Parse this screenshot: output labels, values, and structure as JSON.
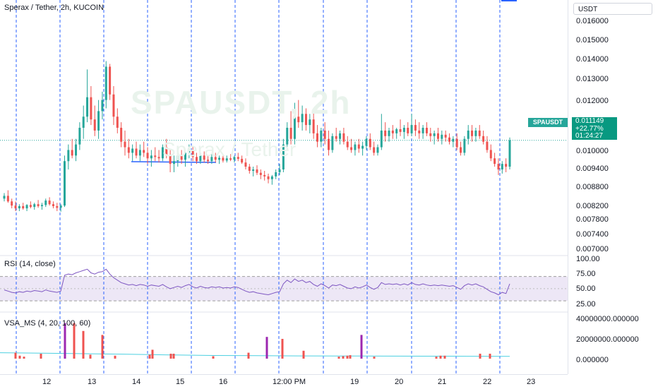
{
  "legend": {
    "symbol_title": "Sperax / Tether, 2h, KUCOIN",
    "rsi_title": "RSI (14, close)",
    "vsa_title": "VSA_MS (4, 20, 100, 60)"
  },
  "watermark": {
    "line1": "SPAUSDT, 2h",
    "line2": "Sperax / Tether"
  },
  "price_axis": {
    "currency": "USDT",
    "ticks": [
      "0.016000",
      "0.015000",
      "0.014000",
      "0.013000",
      "0.012000",
      "0.010000",
      "0.009400",
      "0.008800",
      "0.008200",
      "0.007800",
      "0.007400",
      "0.007000"
    ]
  },
  "rsi_axis": {
    "ticks": [
      "100.00",
      "75.00",
      "50.00",
      "25.00"
    ]
  },
  "volume_axis": {
    "ticks": [
      "40000000.000000",
      "20000000.000000",
      "0.000000"
    ]
  },
  "last_price": {
    "symbol": "SPAUSDT",
    "value": "0.011149",
    "change": "+22.77%",
    "countdown": "01:24:27"
  },
  "time_axis": {
    "labels": [
      "12",
      "13",
      "14",
      "15",
      "16",
      "12:00 PM",
      "19",
      "20",
      "21",
      "22",
      "23"
    ]
  },
  "colors": {
    "up": "#26a69a",
    "down": "#ef5350",
    "divider": "#2962ff",
    "rsi_line": "#7e57c2",
    "rsi_band": "#ede7f6",
    "vol_ma": "#4dd0e1",
    "vsa_climax": "#9c27b0"
  },
  "chart_data": {
    "type": "candlestick",
    "price_range": [
      0.007,
      0.0162
    ],
    "candles": [
      [
        0.00905,
        0.00925,
        0.00895,
        0.00915
      ],
      [
        0.00915,
        0.00935,
        0.0089,
        0.00895
      ],
      [
        0.00895,
        0.00905,
        0.0087,
        0.0088
      ],
      [
        0.0088,
        0.00895,
        0.0086,
        0.0087
      ],
      [
        0.0087,
        0.00885,
        0.0086,
        0.00878
      ],
      [
        0.00878,
        0.0089,
        0.00865,
        0.0087
      ],
      [
        0.0087,
        0.00885,
        0.0086,
        0.00882
      ],
      [
        0.00882,
        0.00895,
        0.0087,
        0.00875
      ],
      [
        0.00875,
        0.0089,
        0.00865,
        0.00885
      ],
      [
        0.00885,
        0.009,
        0.00872,
        0.00878
      ],
      [
        0.00878,
        0.0089,
        0.00865,
        0.00882
      ],
      [
        0.00882,
        0.00905,
        0.00875,
        0.00898
      ],
      [
        0.00898,
        0.0091,
        0.0088,
        0.00885
      ],
      [
        0.00885,
        0.00895,
        0.0087,
        0.00878
      ],
      [
        0.00878,
        0.0089,
        0.0086,
        0.00872
      ],
      [
        0.00872,
        0.00885,
        0.00858,
        0.0088
      ],
      [
        0.0088,
        0.0106,
        0.00875,
        0.0104
      ],
      [
        0.0104,
        0.011,
        0.0101,
        0.0108
      ],
      [
        0.0108,
        0.0112,
        0.0105,
        0.0106
      ],
      [
        0.0106,
        0.0112,
        0.0104,
        0.011
      ],
      [
        0.011,
        0.0118,
        0.0108,
        0.0116
      ],
      [
        0.0116,
        0.0124,
        0.0112,
        0.012
      ],
      [
        0.012,
        0.0137,
        0.0118,
        0.0127
      ],
      [
        0.0127,
        0.0131,
        0.0117,
        0.0119
      ],
      [
        0.0119,
        0.0124,
        0.0113,
        0.0115
      ],
      [
        0.0115,
        0.0126,
        0.0112,
        0.0122
      ],
      [
        0.0122,
        0.0129,
        0.0119,
        0.0126
      ],
      [
        0.0126,
        0.014,
        0.0123,
        0.0138
      ],
      [
        0.0138,
        0.0139,
        0.0126,
        0.0128
      ],
      [
        0.0128,
        0.0131,
        0.0117,
        0.012
      ],
      [
        0.012,
        0.0123,
        0.0114,
        0.0116
      ],
      [
        0.0116,
        0.0118,
        0.0109,
        0.0111
      ],
      [
        0.0111,
        0.0115,
        0.0106,
        0.0109
      ],
      [
        0.0109,
        0.0112,
        0.0105,
        0.0107
      ],
      [
        0.0107,
        0.011,
        0.0104,
        0.01085
      ],
      [
        0.01085,
        0.0111,
        0.0105,
        0.0106
      ],
      [
        0.0106,
        0.011,
        0.0104,
        0.0108
      ],
      [
        0.0108,
        0.0111,
        0.01055,
        0.0107
      ],
      [
        0.0107,
        0.0109,
        0.0103,
        0.0105
      ],
      [
        0.0105,
        0.0108,
        0.0102,
        0.0106
      ],
      [
        0.0106,
        0.0109,
        0.0104,
        0.01055
      ],
      [
        0.01055,
        0.0108,
        0.01035,
        0.0105
      ],
      [
        0.0105,
        0.011,
        0.0104,
        0.0109
      ],
      [
        0.0109,
        0.0112,
        0.0105,
        0.0106
      ],
      [
        0.0106,
        0.0108,
        0.01,
        0.0103
      ],
      [
        0.0103,
        0.0106,
        0.01,
        0.0104
      ],
      [
        0.0104,
        0.0107,
        0.0102,
        0.0106
      ],
      [
        0.0106,
        0.0108,
        0.0103,
        0.01045
      ],
      [
        0.01045,
        0.0108,
        0.0102,
        0.0107
      ],
      [
        0.0107,
        0.011,
        0.0105,
        0.0108
      ],
      [
        0.0108,
        0.01095,
        0.0104,
        0.01055
      ],
      [
        0.01055,
        0.0107,
        0.0103,
        0.0104
      ],
      [
        0.0104,
        0.0107,
        0.0103,
        0.0106
      ],
      [
        0.0106,
        0.01075,
        0.01035,
        0.01045
      ],
      [
        0.01045,
        0.0106,
        0.0103,
        0.0104
      ],
      [
        0.0104,
        0.01065,
        0.0103,
        0.01055
      ],
      [
        0.01055,
        0.0107,
        0.01035,
        0.01045
      ],
      [
        0.01045,
        0.0106,
        0.0103,
        0.01052
      ],
      [
        0.01052,
        0.01065,
        0.01035,
        0.01042
      ],
      [
        0.01042,
        0.0106,
        0.01035,
        0.0105
      ],
      [
        0.0105,
        0.01065,
        0.0104,
        0.01045
      ],
      [
        0.01045,
        0.0106,
        0.01035,
        0.01055
      ],
      [
        0.01055,
        0.0107,
        0.0104,
        0.01048
      ],
      [
        0.01048,
        0.0106,
        0.0103,
        0.01035
      ],
      [
        0.01035,
        0.0105,
        0.0101,
        0.0102
      ],
      [
        0.0102,
        0.0103,
        0.00995,
        0.01005
      ],
      [
        0.01005,
        0.0102,
        0.00985,
        0.0101
      ],
      [
        0.0101,
        0.01025,
        0.0099,
        0.00998
      ],
      [
        0.00998,
        0.0101,
        0.00975,
        0.0099
      ],
      [
        0.0099,
        0.01005,
        0.0097,
        0.00985
      ],
      [
        0.00985,
        0.00995,
        0.0096,
        0.00975
      ],
      [
        0.00975,
        0.0099,
        0.00955,
        0.00985
      ],
      [
        0.00985,
        0.0101,
        0.00975,
        0.01
      ],
      [
        0.01,
        0.0103,
        0.0099,
        0.0101
      ],
      [
        0.0101,
        0.0112,
        0.01,
        0.011
      ],
      [
        0.011,
        0.0118,
        0.0108,
        0.0116
      ],
      [
        0.0116,
        0.0122,
        0.011,
        0.0112
      ],
      [
        0.0112,
        0.0125,
        0.011,
        0.012
      ],
      [
        0.012,
        0.0126,
        0.0116,
        0.0118
      ],
      [
        0.0118,
        0.0124,
        0.0115,
        0.0121
      ],
      [
        0.0121,
        0.0123,
        0.0115,
        0.0117
      ],
      [
        0.0117,
        0.0121,
        0.0114,
        0.0119
      ],
      [
        0.0119,
        0.0122,
        0.0112,
        0.0114
      ],
      [
        0.0114,
        0.0117,
        0.0109,
        0.0111
      ],
      [
        0.0111,
        0.0116,
        0.0109,
        0.0115
      ],
      [
        0.0115,
        0.0118,
        0.011,
        0.0112
      ],
      [
        0.0112,
        0.0115,
        0.0106,
        0.0108
      ],
      [
        0.0108,
        0.0114,
        0.0107,
        0.0113
      ],
      [
        0.0113,
        0.0116,
        0.0111,
        0.0112
      ],
      [
        0.0112,
        0.0115,
        0.011,
        0.0114
      ],
      [
        0.0114,
        0.0116,
        0.011,
        0.0111
      ],
      [
        0.0111,
        0.0113,
        0.0108,
        0.0109
      ],
      [
        0.0109,
        0.0112,
        0.0107,
        0.0108
      ],
      [
        0.0108,
        0.0111,
        0.0106,
        0.011
      ],
      [
        0.011,
        0.0112,
        0.0107,
        0.01085
      ],
      [
        0.01085,
        0.0111,
        0.0106,
        0.01095
      ],
      [
        0.01095,
        0.0113,
        0.0108,
        0.0112
      ],
      [
        0.0112,
        0.0114,
        0.0108,
        0.0109
      ],
      [
        0.0109,
        0.0111,
        0.0106,
        0.0107
      ],
      [
        0.0107,
        0.011,
        0.0106,
        0.0109
      ],
      [
        0.0109,
        0.0121,
        0.0108,
        0.0115
      ],
      [
        0.0115,
        0.0118,
        0.0111,
        0.0113
      ],
      [
        0.0113,
        0.0116,
        0.0111,
        0.0115
      ],
      [
        0.0115,
        0.0117,
        0.0112,
        0.0114
      ],
      [
        0.0114,
        0.0116,
        0.0112,
        0.01155
      ],
      [
        0.01155,
        0.0119,
        0.0113,
        0.01145
      ],
      [
        0.01145,
        0.0117,
        0.0112,
        0.0116
      ],
      [
        0.0116,
        0.0118,
        0.0113,
        0.0114
      ],
      [
        0.0114,
        0.0121,
        0.0113,
        0.0117
      ],
      [
        0.0117,
        0.0119,
        0.0113,
        0.0115
      ],
      [
        0.0115,
        0.0118,
        0.0112,
        0.0114
      ],
      [
        0.0114,
        0.0117,
        0.0112,
        0.0116
      ],
      [
        0.0116,
        0.0118,
        0.0113,
        0.0114
      ],
      [
        0.0114,
        0.0116,
        0.0111,
        0.0113
      ],
      [
        0.0113,
        0.0115,
        0.011,
        0.0114
      ],
      [
        0.0114,
        0.0116,
        0.0111,
        0.0112
      ],
      [
        0.0112,
        0.0115,
        0.011,
        0.01135
      ],
      [
        0.01135,
        0.0115,
        0.0111,
        0.01125
      ],
      [
        0.01125,
        0.0114,
        0.011,
        0.0111
      ],
      [
        0.0111,
        0.0113,
        0.0109,
        0.0112
      ],
      [
        0.0112,
        0.0114,
        0.0108,
        0.0109
      ],
      [
        0.0109,
        0.0111,
        0.0106,
        0.0107
      ],
      [
        0.0107,
        0.0113,
        0.0106,
        0.0112
      ],
      [
        0.0112,
        0.0117,
        0.011,
        0.0115
      ],
      [
        0.0115,
        0.0117,
        0.0111,
        0.0113
      ],
      [
        0.0113,
        0.0116,
        0.0111,
        0.0115
      ],
      [
        0.0115,
        0.0117,
        0.0112,
        0.0113
      ],
      [
        0.0113,
        0.0115,
        0.011,
        0.0111
      ],
      [
        0.0111,
        0.0113,
        0.0107,
        0.0108
      ],
      [
        0.0108,
        0.011,
        0.0104,
        0.0105
      ],
      [
        0.0105,
        0.0107,
        0.0102,
        0.0103
      ],
      [
        0.0103,
        0.0105,
        0.0099,
        0.0101
      ],
      [
        0.0101,
        0.0104,
        0.00995,
        0.0103
      ],
      [
        0.0103,
        0.0105,
        0.01,
        0.0102
      ],
      [
        0.0102,
        0.01125,
        0.0101,
        0.01115
      ]
    ],
    "dividers": [
      23,
      85,
      147,
      209,
      271,
      333,
      395,
      458,
      520,
      583,
      646,
      708
    ],
    "rsi": {
      "range": [
        0,
        100
      ],
      "upper": 70,
      "lower": 30,
      "values": [
        48,
        46,
        44,
        43,
        45,
        44,
        46,
        45,
        47,
        46,
        45,
        48,
        46,
        45,
        44,
        46,
        72,
        74,
        73,
        76,
        78,
        80,
        82,
        76,
        74,
        77,
        78,
        82,
        74,
        68,
        64,
        60,
        58,
        56,
        57,
        55,
        57,
        56,
        54,
        56,
        55,
        54,
        57,
        53,
        50,
        52,
        54,
        52,
        55,
        57,
        53,
        51,
        54,
        52,
        51,
        53,
        52,
        53,
        51,
        52,
        51,
        53,
        52,
        49,
        46,
        44,
        45,
        43,
        42,
        41,
        40,
        42,
        44,
        45,
        58,
        64,
        60,
        66,
        62,
        64,
        60,
        62,
        57,
        54,
        58,
        55,
        51,
        56,
        55,
        57,
        54,
        51,
        50,
        53,
        51,
        53,
        56,
        52,
        49,
        52,
        60,
        57,
        58,
        57,
        58,
        56,
        58,
        56,
        60,
        57,
        56,
        58,
        56,
        55,
        56,
        55,
        56,
        55,
        54,
        55,
        52,
        49,
        55,
        58,
        56,
        58,
        55,
        53,
        49,
        45,
        43,
        40,
        44,
        42,
        58
      ]
    },
    "volume": {
      "range": [
        0,
        40000000
      ],
      "bars": [
        [
          22,
          6000000
        ],
        [
          28,
          3000000
        ],
        [
          34,
          2000000
        ],
        [
          58,
          5000000
        ],
        [
          92,
          36000000
        ],
        [
          105,
          36000000
        ],
        [
          118,
          28000000
        ],
        [
          128,
          4000000
        ],
        [
          145,
          24000000
        ],
        [
          163,
          3000000
        ],
        [
          212,
          4000000
        ],
        [
          216,
          9000000
        ],
        [
          242,
          5000000
        ],
        [
          246,
          5000000
        ],
        [
          302,
          2500000
        ],
        [
          352,
          6000000
        ],
        [
          378,
          22000000
        ],
        [
          400,
          20000000
        ],
        [
          430,
          8000000
        ],
        [
          480,
          2000000
        ],
        [
          486,
          2500000
        ],
        [
          492,
          3000000
        ],
        [
          496,
          3500000
        ],
        [
          512,
          24000000
        ],
        [
          530,
          2000000
        ],
        [
          618,
          2000000
        ],
        [
          624,
          3000000
        ],
        [
          630,
          3000000
        ],
        [
          680,
          5000000
        ],
        [
          694,
          5000000
        ]
      ],
      "ma": [
        6000000,
        5500000,
        5000000,
        4500000,
        3800000,
        3200000,
        3000000,
        2800000,
        2700000,
        2600000,
        2500000,
        2400000,
        2300000
      ]
    }
  }
}
